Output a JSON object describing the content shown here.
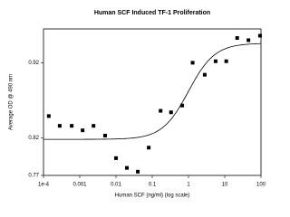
{
  "chart_data": {
    "type": "scatter",
    "title": "Human SCF Induced TF-1 Proliferation",
    "x_label": "Human SCF (ng/ml) (log scale)",
    "y_label": "Average OD @ 490 nm",
    "x_log": true,
    "color": "#000000",
    "x": [
      0.00014,
      0.00028,
      0.0006,
      0.0012,
      0.0024,
      0.005,
      0.01,
      0.02,
      0.04,
      0.08,
      0.17,
      0.33,
      0.67,
      1.3,
      2.8,
      5.6,
      11,
      22,
      45,
      94
    ],
    "values": [
      0.849,
      0.836,
      0.836,
      0.83,
      0.836,
      0.823,
      0.793,
      0.78,
      0.775,
      0.807,
      0.856,
      0.854,
      0.863,
      0.92,
      0.904,
      0.922,
      0.922,
      0.953,
      0.95,
      0.956
    ],
    "fit": {
      "model": "4pl",
      "bottom": 0.818,
      "top": 0.946,
      "ec50": 1.0,
      "hill": 1.2
    },
    "xlim": [
      0.0001,
      100
    ],
    "ylim": [
      0.77,
      0.965
    ],
    "xticks": [
      {
        "value": 0.0001,
        "label": "1e-4"
      },
      0.001,
      0.01,
      0.1,
      1,
      10,
      100
    ],
    "yticks": [
      0.77,
      0.82,
      0.92
    ]
  }
}
